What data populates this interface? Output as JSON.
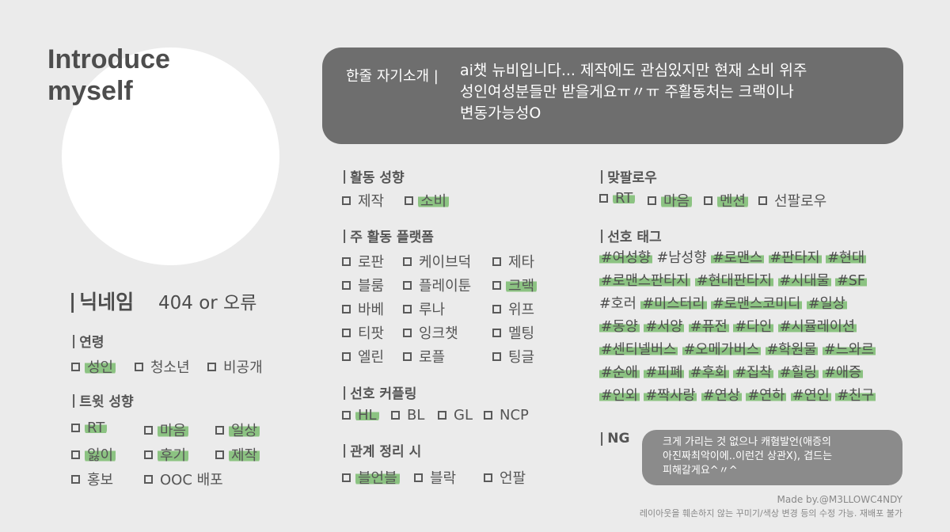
{
  "header": {
    "title_line1": "Introduce",
    "title_line2": "myself"
  },
  "intro": {
    "label": "한줄 자기소개 |",
    "lines": [
      "ai챗 뉴비입니다... 제작에도 관심있지만 현재 소비 위주",
      "성인여성분들만 받을게요ㅠ〃ㅠ 주활동처는 크랙이나",
      "변동가능성O"
    ]
  },
  "nickname": {
    "label": "닉네임",
    "value": "404 or 오류"
  },
  "age": {
    "heading": "연령",
    "options": [
      "성인",
      "청소년",
      "비공개"
    ],
    "checked": [
      true,
      false,
      false
    ]
  },
  "tweet": {
    "heading": "트윗 성향",
    "options": [
      "RT",
      "마음",
      "일상",
      "잃이",
      "후기",
      "제작",
      "홍보",
      "OOC 배포"
    ],
    "checked": [
      true,
      true,
      true,
      true,
      true,
      true,
      false,
      false
    ]
  },
  "activity": {
    "heading": "활동 성향",
    "options": [
      "제작",
      "소비"
    ],
    "checked": [
      false,
      true
    ]
  },
  "platform": {
    "heading": "주 활동 플랫폼",
    "options": [
      "로판",
      "케이브덕",
      "제타",
      "블룸",
      "플레이툰",
      "크랙",
      "바베",
      "루나",
      "위프",
      "티팟",
      "잉크챗",
      "멜팅",
      "엘린",
      "로플",
      "팅글"
    ],
    "checked": [
      false,
      false,
      false,
      false,
      false,
      true,
      false,
      false,
      false,
      false,
      false,
      false,
      false,
      false,
      false
    ]
  },
  "coupling": {
    "heading": "선호 커플링",
    "options": [
      "HL",
      "BL",
      "GL",
      "NCP"
    ],
    "checked": [
      true,
      false,
      false,
      false
    ]
  },
  "relation": {
    "heading": "관계 정리 시",
    "options": [
      "블언블",
      "블락",
      "언팔"
    ],
    "checked": [
      true,
      false,
      false
    ]
  },
  "follow": {
    "heading": "맞팔로우",
    "options": [
      "RT",
      "마음",
      "멘션",
      "선팔로우"
    ],
    "checked": [
      true,
      true,
      true,
      false
    ]
  },
  "tags": {
    "heading": "선호 태그",
    "lines": [
      [
        "#여성향",
        "#남성향",
        "#로맨스",
        "#판타지",
        "#현대"
      ],
      [
        "#로맨스판타지",
        "#현대판타지",
        "#시대물",
        "#SF"
      ],
      [
        "#호러",
        "#미스터리",
        "#로맨스코미디",
        "#일상"
      ],
      [
        "#동양",
        "#서양",
        "#퓨전",
        "#다인",
        "#시뮬레이션"
      ],
      [
        "#센티넬버스",
        "#오메가버스",
        "#학원물",
        "#느와르"
      ],
      [
        "#순애",
        "#피폐",
        "#후회",
        "#집착",
        "#힐링",
        "#애증"
      ],
      [
        "#인외",
        "#짝사랑",
        "#연상",
        "#연하",
        "#연인",
        "#친구"
      ]
    ],
    "highlighted": [
      [
        true,
        false,
        true,
        true,
        true
      ],
      [
        true,
        true,
        true,
        true
      ],
      [
        false,
        true,
        true,
        true
      ],
      [
        true,
        true,
        true,
        true,
        true
      ],
      [
        true,
        true,
        true,
        true
      ],
      [
        true,
        true,
        true,
        true,
        true,
        true
      ],
      [
        true,
        true,
        true,
        true,
        true,
        true
      ]
    ]
  },
  "ng": {
    "heading": "NG",
    "lines": [
      "크게 가리는 것 없으나 캐혐발언(애증의",
      "아진짜최악이에..이런건 상관X), 겹드는",
      "피해갈게요^〃^"
    ]
  },
  "footer": {
    "credit": "Made by.@M3LLOWC4NDY",
    "notice": "레이아웃을 훼손하지 않는 꾸미기/색상 변경 등의 수정 가능. 재배포 불가"
  },
  "colors": {
    "background": "#ebebeb",
    "highlight": "#8cc382",
    "intro_box": "#6e6e6e",
    "ng_box": "#8b8b8b"
  }
}
